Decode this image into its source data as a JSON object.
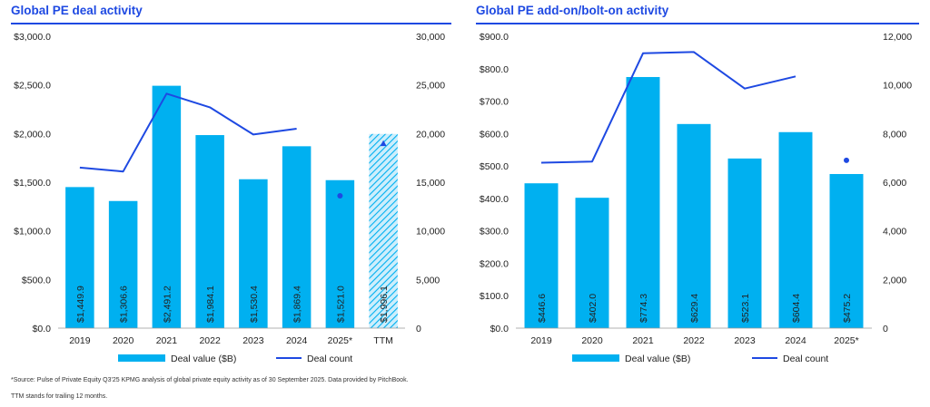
{
  "footnotes": {
    "source": "*Source: Pulse of Private Equity Q3'25 KPMG analysis of global private equity activity as of 30 September 2025. Data provided by PitchBook.",
    "ttm": "TTM stands for trailing 12 months."
  },
  "colors": {
    "bar": "#00b0f0",
    "line": "#1e49e2",
    "title": "#1e49e2",
    "hatch_bg": "#cdeefc"
  },
  "chart_data": [
    {
      "type": "bar",
      "title": "Global PE deal activity",
      "categories": [
        "2019",
        "2020",
        "2021",
        "2022",
        "2023",
        "2024",
        "2025*",
        "TTM"
      ],
      "series": [
        {
          "name": "Deal value ($B)",
          "axis": "left",
          "values": [
            1449.9,
            1306.6,
            2491.2,
            1984.1,
            1530.4,
            1869.4,
            1521.0,
            1996.1
          ],
          "labels": [
            "$1,449.9",
            "$1,306.6",
            "$2,491.2",
            "$1,984.1",
            "$1,530.4",
            "$1,869.4",
            "$1,521.0",
            "$1,996.1"
          ],
          "hatched": [
            false,
            false,
            false,
            false,
            false,
            false,
            false,
            true
          ]
        },
        {
          "name": "Deal count",
          "axis": "right",
          "type": "line",
          "values": [
            16500,
            16100,
            24100,
            22700,
            19900,
            20500,
            null,
            null
          ],
          "markers": [
            {
              "category": "2025*",
              "value": 13600,
              "shape": "circle"
            },
            {
              "category": "TTM",
              "value": 19000,
              "shape": "triangle"
            }
          ]
        }
      ],
      "ylim": [
        0,
        3000
      ],
      "y2lim": [
        0,
        30000
      ],
      "yticks": [
        "$0.0",
        "$500.0",
        "$1,000.0",
        "$1,500.0",
        "$2,000.0",
        "$2,500.0",
        "$3,000.0"
      ],
      "y2ticks": [
        "0",
        "5,000",
        "10,000",
        "15,000",
        "20,000",
        "25,000",
        "30,000"
      ],
      "legend": [
        "Deal value ($B)",
        "Deal count"
      ],
      "legend_position": "bottom"
    },
    {
      "type": "bar",
      "title": "Global PE add-on/bolt-on activity",
      "categories": [
        "2019",
        "2020",
        "2021",
        "2022",
        "2023",
        "2024",
        "2025*"
      ],
      "series": [
        {
          "name": "Deal value ($B)",
          "axis": "left",
          "values": [
            446.6,
            402.0,
            774.3,
            629.4,
            523.1,
            604.4,
            475.2
          ],
          "labels": [
            "$446.6",
            "$402.0",
            "$774.3",
            "$629.4",
            "$523.1",
            "$604.4",
            "$475.2"
          ],
          "hatched": [
            false,
            false,
            false,
            false,
            false,
            false,
            false
          ]
        },
        {
          "name": "Deal count",
          "axis": "right",
          "type": "line",
          "values": [
            6800,
            6850,
            11300,
            11350,
            9850,
            10350,
            null
          ],
          "markers": [
            {
              "category": "2025*",
              "value": 6900,
              "shape": "circle"
            }
          ]
        }
      ],
      "ylim": [
        0,
        900
      ],
      "y2lim": [
        0,
        12000
      ],
      "yticks": [
        "$0.0",
        "$100.0",
        "$200.0",
        "$300.0",
        "$400.0",
        "$500.0",
        "$600.0",
        "$700.0",
        "$800.0",
        "$900.0"
      ],
      "y2ticks": [
        "0",
        "2,000",
        "4,000",
        "6,000",
        "8,000",
        "10,000",
        "12,000"
      ],
      "legend": [
        "Deal value ($B)",
        "Deal count"
      ],
      "legend_position": "bottom"
    }
  ]
}
